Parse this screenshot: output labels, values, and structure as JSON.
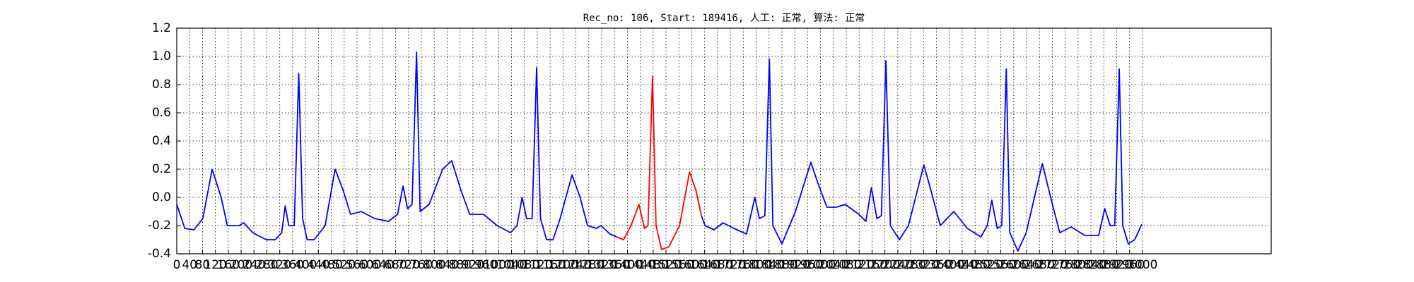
{
  "chart_data": {
    "type": "line",
    "title": "Rec_no: 106, Start: 189416, 人工: 正常, 算法: 正常",
    "x": [
      0,
      25,
      53,
      81,
      110,
      138,
      157,
      194,
      208,
      236,
      278,
      306,
      326,
      337,
      348,
      365,
      379,
      391,
      405,
      427,
      461,
      492,
      517,
      540,
      573,
      615,
      658,
      686,
      703,
      717,
      731,
      745,
      756,
      784,
      826,
      854,
      883,
      910,
      953,
      995,
      1037,
      1057,
      1073,
      1087,
      1104,
      1118,
      1130,
      1149,
      1169,
      1191,
      1228,
      1253,
      1276,
      1304,
      1318,
      1346,
      1366,
      1388,
      1411,
      1436,
      1453,
      1464,
      1478,
      1489,
      1506,
      1529,
      1562,
      1593,
      1613,
      1630,
      1641,
      1669,
      1697,
      1731,
      1770,
      1796,
      1810,
      1827,
      1841,
      1852,
      1880,
      1922,
      1970,
      1992,
      2020,
      2048,
      2077,
      2119,
      2141,
      2158,
      2175,
      2189,
      2203,
      2217,
      2245,
      2273,
      2321,
      2343,
      2372,
      2414,
      2456,
      2498,
      2518,
      2532,
      2549,
      2563,
      2577,
      2588,
      2613,
      2639,
      2689,
      2715,
      2743,
      2779,
      2821,
      2864,
      2883,
      2900,
      2914,
      2928,
      2939,
      2956,
      2976,
      2998
    ],
    "series": [
      {
        "color": "#0000ff",
        "values": [
          -0.05,
          -0.22,
          -0.23,
          -0.15,
          0.2,
          0.0,
          -0.2,
          -0.2,
          -0.18,
          -0.25,
          -0.3,
          -0.3,
          -0.25,
          -0.06,
          -0.2,
          -0.2,
          0.88,
          -0.15,
          -0.3,
          -0.3,
          -0.2,
          0.2,
          0.05,
          -0.12,
          -0.1,
          -0.15,
          -0.17,
          -0.12,
          0.08,
          -0.08,
          -0.05,
          1.03,
          -0.1,
          -0.05,
          0.2,
          0.26,
          0.05,
          -0.12,
          -0.12,
          -0.2,
          -0.25,
          -0.2,
          0.0,
          -0.15,
          -0.15,
          0.92,
          -0.15,
          -0.3,
          -0.3,
          -0.15,
          0.16,
          0.0,
          -0.2,
          -0.22,
          -0.2,
          -0.26,
          -0.28,
          null,
          null,
          null,
          null,
          null,
          null,
          null,
          null,
          null,
          null,
          null,
          null,
          -0.13,
          -0.2,
          -0.23,
          -0.18,
          -0.22,
          -0.26,
          0.0,
          -0.15,
          -0.13,
          0.98,
          -0.2,
          -0.33,
          -0.1,
          0.25,
          0.1,
          -0.07,
          -0.07,
          -0.05,
          -0.12,
          -0.17,
          0.07,
          -0.15,
          -0.13,
          0.97,
          -0.2,
          -0.3,
          -0.2,
          0.23,
          0.05,
          -0.2,
          -0.1,
          -0.22,
          -0.28,
          -0.2,
          -0.02,
          -0.22,
          -0.2,
          0.91,
          -0.25,
          -0.38,
          -0.25,
          0.24,
          0.0,
          -0.25,
          -0.21,
          -0.27,
          -0.27,
          -0.08,
          -0.2,
          -0.2,
          0.91,
          -0.2,
          -0.33,
          -0.3,
          -0.19
        ]
      },
      {
        "color": "#ff0000",
        "values": [
          null,
          null,
          null,
          null,
          null,
          null,
          null,
          null,
          null,
          null,
          null,
          null,
          null,
          null,
          null,
          null,
          null,
          null,
          null,
          null,
          null,
          null,
          null,
          null,
          null,
          null,
          null,
          null,
          null,
          null,
          null,
          null,
          null,
          null,
          null,
          null,
          null,
          null,
          null,
          null,
          null,
          null,
          null,
          null,
          null,
          null,
          null,
          null,
          null,
          null,
          null,
          null,
          null,
          null,
          null,
          null,
          -0.28,
          -0.3,
          -0.2,
          -0.05,
          -0.22,
          -0.2,
          0.86,
          -0.2,
          -0.37,
          -0.35,
          -0.2,
          0.18,
          0.05,
          -0.13,
          null,
          null,
          null,
          null,
          null,
          null,
          null,
          null,
          null,
          null,
          null,
          null,
          null,
          null,
          null,
          null,
          null,
          null,
          null,
          null,
          null,
          null,
          null,
          null,
          null,
          null,
          null,
          null,
          null,
          null,
          null,
          null,
          null,
          null,
          null,
          null,
          null,
          null,
          null,
          null,
          null,
          null,
          null,
          null,
          null,
          null,
          null,
          null,
          null,
          null,
          null,
          null,
          null,
          null
        ]
      }
    ],
    "xlim": [
      0,
      3400
    ],
    "xticks": [
      0,
      40,
      80,
      120,
      160,
      200,
      240,
      280,
      320,
      360,
      400,
      440,
      480,
      520,
      560,
      600,
      640,
      680,
      720,
      760,
      800,
      840,
      880,
      920,
      960,
      1000,
      1040,
      1080,
      1120,
      1160,
      1200,
      1240,
      1280,
      1320,
      1360,
      1400,
      1440,
      1480,
      1520,
      1560,
      1600,
      1640,
      1680,
      1720,
      1760,
      1800,
      1840,
      1880,
      1920,
      1960,
      2000,
      2040,
      2080,
      2120,
      2160,
      2200,
      2240,
      2280,
      2320,
      2360,
      2400,
      2440,
      2480,
      2520,
      2560,
      2600,
      2640,
      2680,
      2720,
      2760,
      2800,
      2840,
      2880,
      2920,
      2960,
      3000
    ],
    "ylim": [
      -0.4,
      1.2
    ],
    "yticks": [
      -0.4,
      -0.2,
      {
        "value": 0,
        "label": "0.0"
      },
      0.2,
      0.4,
      0.6,
      0.8,
      {
        "value": 1,
        "label": "1.0"
      },
      1.2
    ],
    "grid": true
  }
}
